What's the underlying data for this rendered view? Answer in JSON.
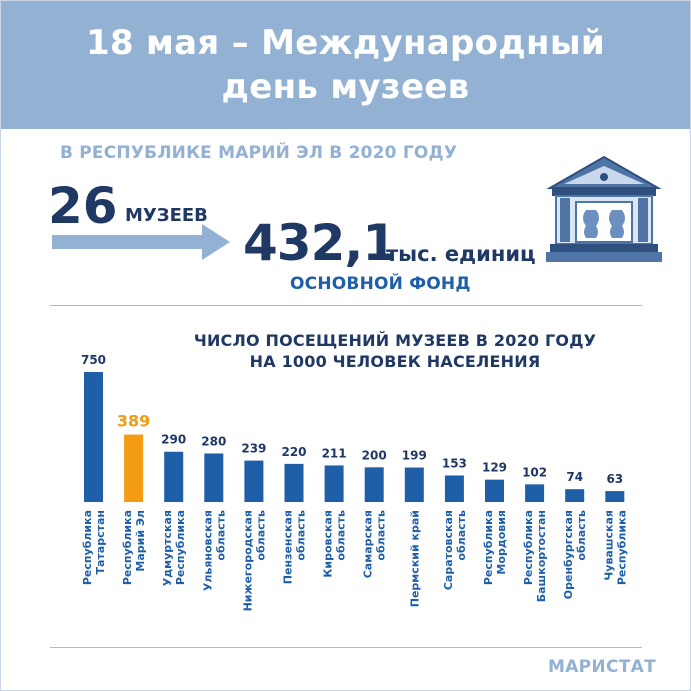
{
  "header": {
    "title_line1": "18 мая – Международный",
    "title_line2": "день музеев"
  },
  "subtitle": "В РЕСПУБЛИКЕ МАРИЙ ЭЛ В 2020 ГОДУ",
  "stats": {
    "museums_count": "26",
    "museums_label": "МУЗЕЕВ",
    "fund_value": "432,1",
    "fund_units": "тыс. единиц",
    "fund_label": "ОСНОВНОЙ ФОНД"
  },
  "icons": {
    "museum": "museum-building-icon",
    "arrow": "right-arrow-icon"
  },
  "colors": {
    "header_bg": "#93b1d3",
    "dark_blue": "#1f3864",
    "bar_blue": "#1f5fa8",
    "highlight": "#f39c12"
  },
  "chart_data": {
    "type": "bar",
    "title": "ЧИСЛО ПОСЕЩЕНИЙ МУЗЕЕВ В 2020 ГОДУ НА 1000 ЧЕЛОВЕК НАСЕЛЕНИЯ",
    "title_line1": "ЧИСЛО ПОСЕЩЕНИЙ МУЗЕЕВ В 2020 ГОДУ",
    "title_line2": "НА 1000 ЧЕЛОВЕК НАСЕЛЕНИЯ",
    "categories": [
      [
        "Республика",
        "Татарстан"
      ],
      [
        "Республика",
        "Марий Эл"
      ],
      [
        "Удмуртская",
        "Республика"
      ],
      [
        "Ульяновская",
        "область"
      ],
      [
        "Нижегородская",
        "область"
      ],
      [
        "Пензенская",
        "область"
      ],
      [
        "Кировская",
        "область"
      ],
      [
        "Самарская",
        "область"
      ],
      [
        "Пермский край"
      ],
      [
        "Саратовская",
        "область"
      ],
      [
        "Республика",
        "Мордовия"
      ],
      [
        "Республика",
        "Башкортостан"
      ],
      [
        "Оренбургская",
        "область"
      ],
      [
        "Чувашская",
        "Республика"
      ]
    ],
    "values": [
      750,
      389,
      290,
      280,
      239,
      220,
      211,
      200,
      199,
      153,
      129,
      102,
      74,
      63
    ],
    "highlight_index": 1,
    "xlabel": "",
    "ylabel": "",
    "ylim": [
      0,
      750
    ],
    "grid": false,
    "legend": "none"
  },
  "source": "МАРИСТАТ"
}
